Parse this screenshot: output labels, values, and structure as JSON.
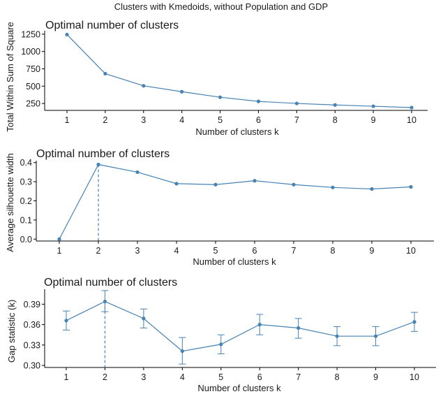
{
  "figure": {
    "suptitle": "Clusters with Kmedoids, without Population and GDP"
  },
  "colors": {
    "series": "#4682b4",
    "axis": "#000000"
  },
  "chart_data": [
    {
      "type": "line",
      "title": "Optimal number of clusters",
      "xlabel": "Number of clusters k",
      "ylabel": "Total Within Sum of Square",
      "x": [
        1,
        2,
        3,
        4,
        5,
        6,
        7,
        8,
        9,
        10
      ],
      "y": [
        1245,
        680,
        505,
        420,
        340,
        280,
        250,
        228,
        210,
        190
      ],
      "ylim": [
        150,
        1300
      ],
      "yticks": [
        250,
        500,
        750,
        1000,
        1250
      ],
      "xticks": [
        1,
        2,
        3,
        4,
        5,
        6,
        7,
        8,
        9,
        10
      ]
    },
    {
      "type": "line",
      "title": "Optimal number of clusters",
      "xlabel": "Number of clusters k",
      "ylabel": "Average silhouette width",
      "x": [
        1,
        2,
        3,
        4,
        5,
        6,
        7,
        8,
        9,
        10
      ],
      "y": [
        0.0,
        0.39,
        0.35,
        0.29,
        0.285,
        0.305,
        0.285,
        0.27,
        0.262,
        0.273
      ],
      "ylim": [
        -0.01,
        0.41
      ],
      "yticks": [
        0.0,
        0.1,
        0.2,
        0.3,
        0.4
      ],
      "ytick_labels": [
        "0.0",
        "0.1",
        "0.2",
        "0.3",
        "0.4"
      ],
      "xticks": [
        1,
        2,
        3,
        4,
        5,
        6,
        7,
        8,
        9,
        10
      ],
      "vline_x": 2
    },
    {
      "type": "line",
      "title": "Optimal number of clusters",
      "xlabel": "Number of clusters k",
      "ylabel": "Gap statistic (k)",
      "x": [
        1,
        2,
        3,
        4,
        5,
        6,
        7,
        8,
        9,
        10
      ],
      "y": [
        0.366,
        0.394,
        0.369,
        0.321,
        0.331,
        0.36,
        0.355,
        0.343,
        0.343,
        0.364
      ],
      "err_lo": [
        0.352,
        0.379,
        0.355,
        0.302,
        0.317,
        0.345,
        0.34,
        0.329,
        0.329,
        0.35
      ],
      "err_hi": [
        0.38,
        0.41,
        0.383,
        0.341,
        0.345,
        0.375,
        0.369,
        0.357,
        0.357,
        0.378
      ],
      "ylim": [
        0.297,
        0.412
      ],
      "yticks": [
        0.3,
        0.33,
        0.36,
        0.39
      ],
      "ytick_labels": [
        "0.30",
        "0.33",
        "0.36",
        "0.39"
      ],
      "xticks": [
        1,
        2,
        3,
        4,
        5,
        6,
        7,
        8,
        9,
        10
      ],
      "vline_x": 2
    }
  ]
}
